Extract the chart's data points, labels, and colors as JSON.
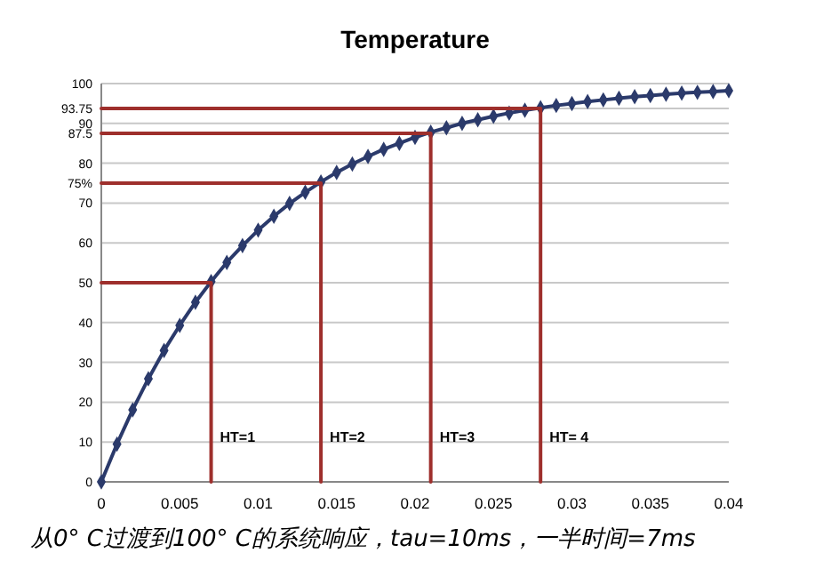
{
  "chart_data": {
    "type": "line",
    "title": "Temperature",
    "x": [
      0,
      0.001,
      0.002,
      0.003,
      0.004,
      0.005,
      0.006,
      0.007,
      0.008,
      0.009,
      0.01,
      0.011,
      0.012,
      0.013,
      0.014,
      0.015,
      0.016,
      0.017,
      0.018,
      0.019,
      0.02,
      0.021,
      0.022,
      0.023,
      0.024,
      0.025,
      0.026,
      0.027,
      0.028,
      0.029,
      0.03,
      0.031,
      0.032,
      0.033,
      0.034,
      0.035,
      0.036,
      0.037,
      0.038,
      0.039,
      0.04
    ],
    "series": [
      {
        "color": "#2b3a6b",
        "marker": "diamond",
        "values": [
          0,
          9.5,
          18.1,
          25.9,
          33,
          39.3,
          45.1,
          50.3,
          55.1,
          59.3,
          63.2,
          66.7,
          69.9,
          72.7,
          75.3,
          77.7,
          79.8,
          81.7,
          83.5,
          85,
          86.5,
          87.8,
          88.9,
          90,
          90.9,
          91.8,
          92.6,
          93.3,
          93.9,
          94.5,
          95,
          95.5,
          95.9,
          96.3,
          96.7,
          97,
          97.3,
          97.6,
          97.8,
          98,
          98.2
        ]
      },
      {
        "color": "#9e2f2c",
        "marker": "none",
        "x": [
          0,
          0.007,
          0.007
        ],
        "values": [
          50,
          50,
          0
        ]
      },
      {
        "color": "#9e2f2c",
        "marker": "none",
        "x": [
          0,
          0.014,
          0.014
        ],
        "values": [
          75,
          75,
          0
        ]
      },
      {
        "color": "#9e2f2c",
        "marker": "none",
        "x": [
          0,
          0.021,
          0.021
        ],
        "values": [
          87.5,
          87.5,
          0
        ]
      },
      {
        "color": "#9e2f2c",
        "marker": "none",
        "x": [
          0,
          0.028,
          0.028
        ],
        "values": [
          93.75,
          93.75,
          0
        ]
      }
    ],
    "xlim": [
      0,
      0.04
    ],
    "xticks": [
      0,
      0.005,
      0.01,
      0.015,
      0.02,
      0.025,
      0.03,
      0.035,
      0.04
    ],
    "ylim": [
      0,
      100
    ],
    "yticks": [
      0,
      10,
      20,
      30,
      40,
      50,
      60,
      70,
      {
        "value": 75,
        "label": "75%"
      },
      80,
      87.5,
      90,
      93.75,
      100
    ],
    "grid": "y",
    "annotations": [
      {
        "text": "HT=1",
        "x": 0.007,
        "y": 10
      },
      {
        "text": "HT=2",
        "x": 0.014,
        "y": 10
      },
      {
        "text": "HT=3",
        "x": 0.021,
        "y": 10
      },
      {
        "text": "HT= 4",
        "x": 0.028,
        "y": 10
      },
      "从0° C过渡到100° C的系统响应，tau=10ms，一半时间=7ms"
    ]
  }
}
